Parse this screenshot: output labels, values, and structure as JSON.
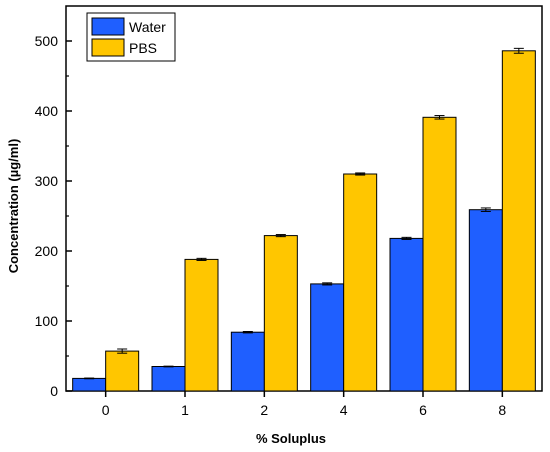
{
  "chart_data": {
    "type": "bar",
    "categories": [
      "0",
      "1",
      "2",
      "4",
      "6",
      "8"
    ],
    "series": [
      {
        "name": "Water",
        "color": "#1f5fff",
        "values": [
          18,
          35,
          84,
          153,
          218,
          259
        ],
        "errors": [
          0.5,
          0.5,
          1,
          1.5,
          1.5,
          2.5
        ]
      },
      {
        "name": "PBS",
        "color": "#ffc600",
        "values": [
          57,
          188,
          222,
          310,
          391,
          486
        ],
        "errors": [
          3,
          1.5,
          1.5,
          1.5,
          2.5,
          3.5
        ]
      }
    ],
    "title": "",
    "xlabel": "% Soluplus",
    "ylabel": "Concentration (µg/ml)",
    "ylim": [
      0,
      550
    ],
    "yticks": [
      0,
      100,
      200,
      300,
      400,
      500
    ],
    "grid": false,
    "legend_position": "top-left"
  }
}
